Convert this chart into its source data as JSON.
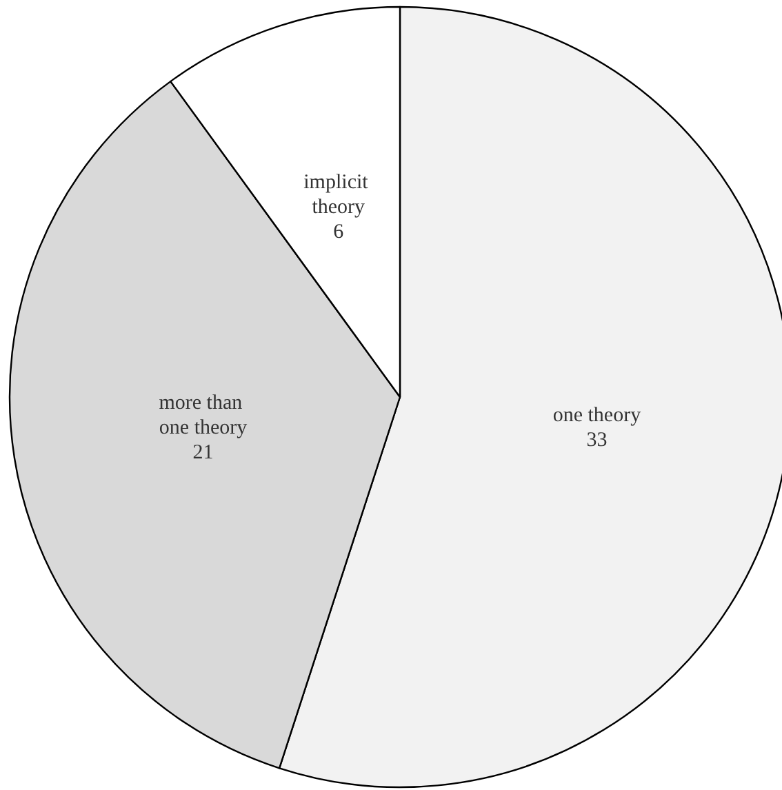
{
  "chart_data": {
    "type": "pie",
    "categories": [
      "one theory",
      "more than one theory",
      "implicit theory"
    ],
    "values": [
      33,
      21,
      6
    ],
    "colors": [
      "#f2f2f2",
      "#d9d9d9",
      "#ffffff"
    ],
    "data_labels": true,
    "legend": false
  }
}
